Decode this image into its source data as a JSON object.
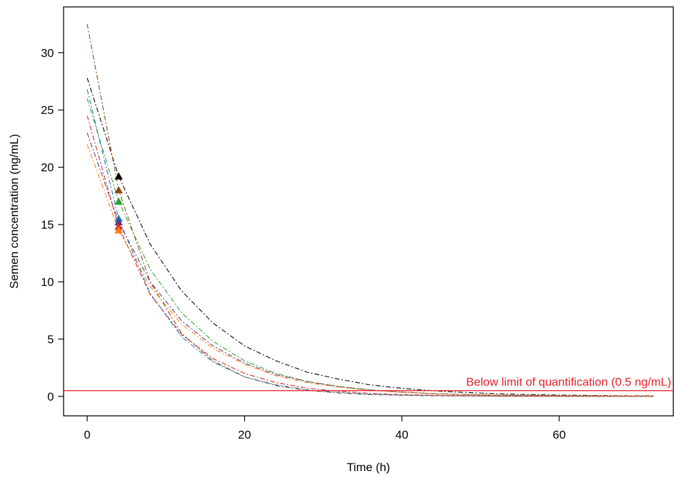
{
  "chart_data": {
    "type": "line",
    "title": "",
    "xlabel": "Time (h)",
    "ylabel": "Semen concentration (ng/mL)",
    "xlim": [
      -3,
      74.5
    ],
    "ylim": [
      -1.7,
      34.0
    ],
    "x_ticks": [
      0,
      20,
      40,
      60
    ],
    "y_ticks": [
      0,
      5,
      10,
      15,
      20,
      25,
      30
    ],
    "grid": false,
    "legend": "none",
    "reference_line": {
      "y": 0.5,
      "label": "Below limit of quantification (0.5 ng/mL)",
      "color": "#e8212b"
    },
    "x": [
      0,
      4,
      8,
      12,
      16,
      20,
      24,
      28,
      32,
      36,
      40,
      44,
      48,
      52,
      56,
      60,
      64,
      68,
      72
    ],
    "series": [
      {
        "color": "#000000",
        "values": [
          27.8,
          19.2,
          13.3,
          9.2,
          6.4,
          4.4,
          3.1,
          2.1,
          1.5,
          1.0,
          0.7,
          0.49,
          0.34,
          0.23,
          0.16,
          0.11,
          0.08,
          0.05,
          0.04
        ]
      },
      {
        "color": "#8b4513",
        "values": [
          32.5,
          18.0,
          10.0,
          5.5,
          3.1,
          1.7,
          0.94,
          0.52,
          0.29,
          0.16,
          0.09,
          0.05,
          0.03,
          0.02,
          0.01,
          0.0,
          0.0,
          0.0,
          0.0
        ]
      },
      {
        "color": "#2ca02c",
        "values": [
          26.0,
          17.0,
          11.1,
          7.3,
          4.8,
          3.1,
          2.0,
          1.3,
          0.87,
          0.57,
          0.37,
          0.24,
          0.16,
          0.1,
          0.07,
          0.05,
          0.03,
          0.02,
          0.01
        ]
      },
      {
        "color": "#1f77b4",
        "values": [
          26.8,
          15.5,
          9.0,
          5.2,
          3.0,
          1.7,
          1.0,
          0.58,
          0.34,
          0.19,
          0.11,
          0.07,
          0.04,
          0.02,
          0.01,
          0.01,
          0.0,
          0.0,
          0.0
        ]
      },
      {
        "color": "#5b3a8c",
        "values": [
          23.0,
          15.2,
          10.0,
          6.6,
          4.4,
          2.9,
          1.9,
          1.3,
          0.84,
          0.55,
          0.37,
          0.24,
          0.16,
          0.11,
          0.07,
          0.05,
          0.03,
          0.02,
          0.01
        ]
      },
      {
        "color": "#d62728",
        "values": [
          24.5,
          14.8,
          8.9,
          5.4,
          3.3,
          2.0,
          1.2,
          0.72,
          0.44,
          0.26,
          0.16,
          0.1,
          0.06,
          0.04,
          0.02,
          0.01,
          0.01,
          0.0,
          0.0
        ]
      },
      {
        "color": "#ff7f0e",
        "values": [
          22.0,
          14.5,
          9.6,
          6.3,
          4.2,
          2.8,
          1.8,
          1.2,
          0.8,
          0.53,
          0.35,
          0.23,
          0.15,
          0.1,
          0.07,
          0.04,
          0.03,
          0.02,
          0.01
        ]
      }
    ],
    "markers": {
      "shape": "triangle",
      "x": 4,
      "points": [
        {
          "y": 19.2,
          "color": "#000000"
        },
        {
          "y": 18.0,
          "color": "#8b4513"
        },
        {
          "y": 17.0,
          "color": "#2ca02c"
        },
        {
          "y": 15.5,
          "color": "#1f77b4"
        },
        {
          "y": 15.2,
          "color": "#5b3a8c"
        },
        {
          "y": 14.8,
          "color": "#d62728"
        },
        {
          "y": 14.5,
          "color": "#ff7f0e"
        }
      ]
    }
  }
}
